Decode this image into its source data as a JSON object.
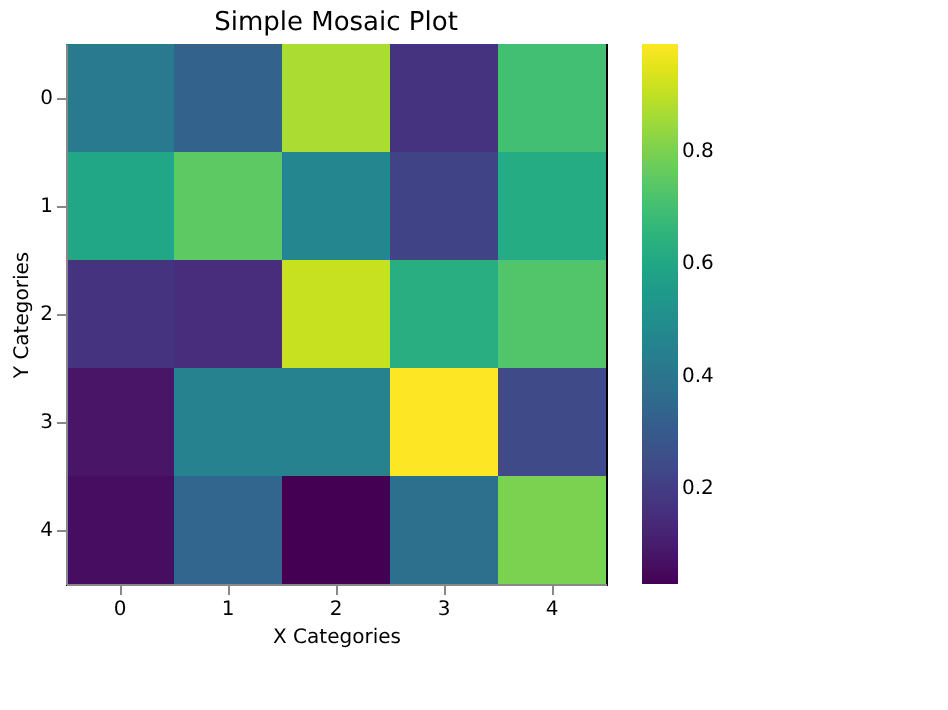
{
  "chart_data": {
    "type": "heatmap",
    "title": "Simple Mosaic Plot",
    "xlabel": "X Categories",
    "ylabel": "Y Categories",
    "categories": [
      "0",
      "1",
      "2",
      "3",
      "4"
    ],
    "y_categories": [
      "0",
      "1",
      "2",
      "3",
      "4"
    ],
    "cells": [
      [
        0.42,
        0.33,
        0.87,
        0.17,
        0.7
      ],
      [
        0.6,
        0.75,
        0.47,
        0.22,
        0.62
      ],
      [
        0.17,
        0.15,
        0.91,
        0.63,
        0.73
      ],
      [
        0.08,
        0.45,
        0.45,
        0.99,
        0.24
      ],
      [
        0.06,
        0.34,
        0.03,
        0.38,
        0.8
      ]
    ],
    "clim": [
      0.03,
      0.99
    ],
    "cticks": [
      0.2,
      0.4,
      0.6,
      0.8
    ]
  }
}
